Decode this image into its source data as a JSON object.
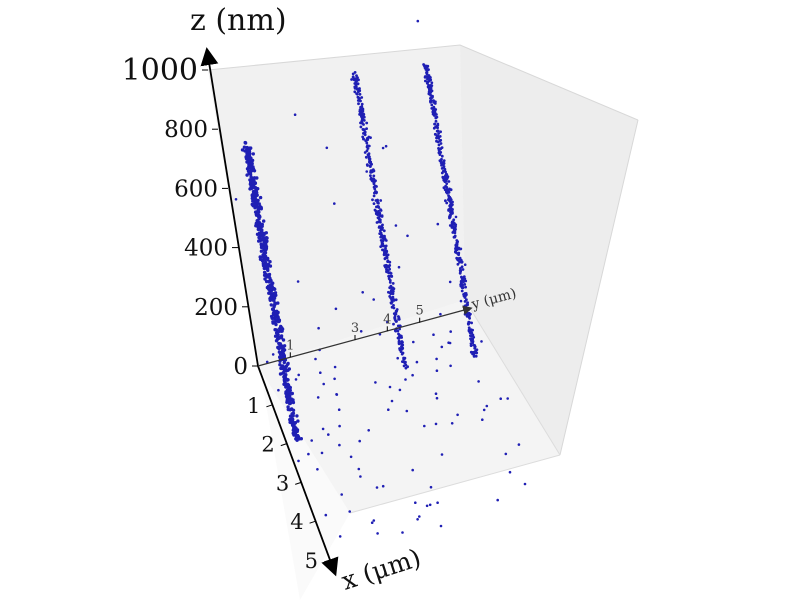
{
  "chart_data": {
    "type": "scatter",
    "projection": "3d",
    "title": "",
    "xlabel": "x (μm)",
    "ylabel": "y (μm)",
    "zlabel": "z (nm)",
    "xlim": [
      0,
      5
    ],
    "ylim": [
      0,
      6.5
    ],
    "zlim": [
      0,
      1000
    ],
    "x_ticks": [
      0,
      1,
      2,
      3,
      4,
      5
    ],
    "y_ticks": [
      1,
      3,
      4,
      5
    ],
    "z_ticks": [
      0,
      200,
      400,
      600,
      800,
      1000
    ],
    "grid": false,
    "box": "translucent-light-gray",
    "marker_color": "#1f1fb4",
    "columns": [
      {
        "x": 2.0,
        "y": 0.3,
        "z_range": [
          0,
          1000
        ],
        "approx_points": 560
      },
      {
        "x": 1.0,
        "y": 4.1,
        "z_range": [
          0,
          1000
        ],
        "approx_points": 380
      },
      {
        "x": 1.2,
        "y": 6.2,
        "z_range": [
          0,
          1000
        ],
        "approx_points": 380
      }
    ],
    "scattered_background_points": 120
  }
}
